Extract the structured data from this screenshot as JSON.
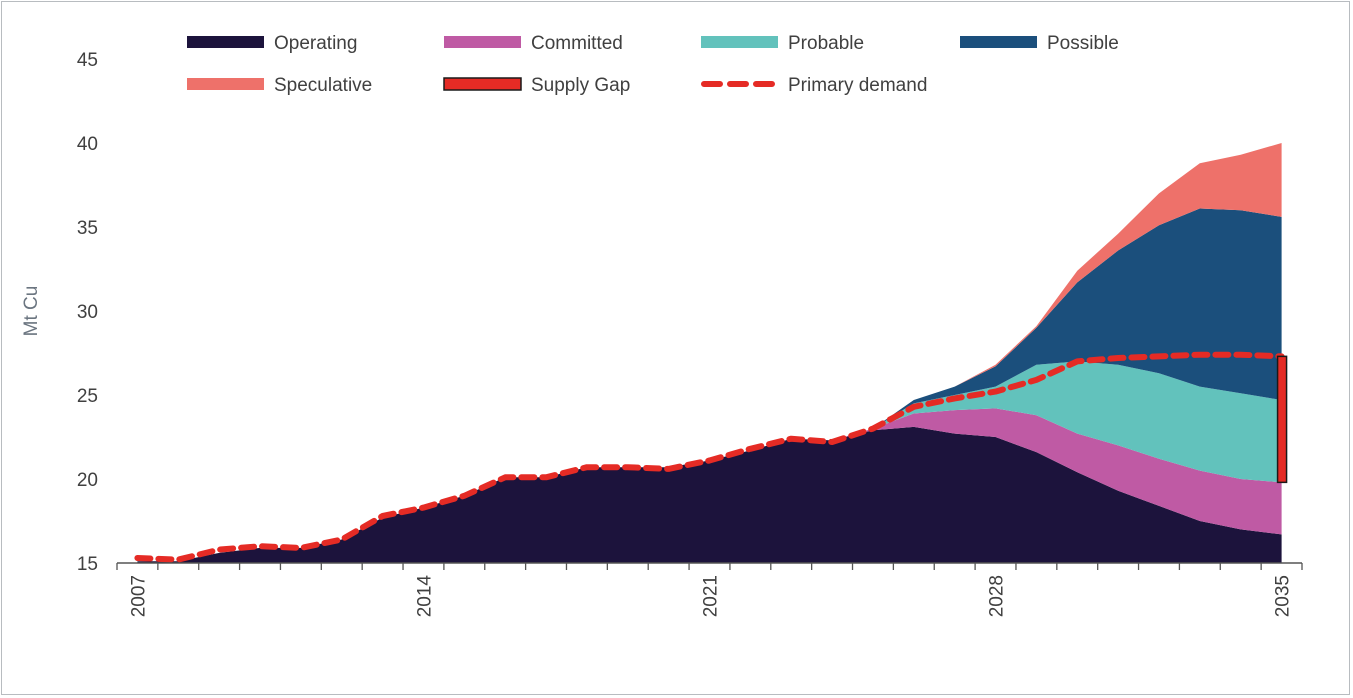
{
  "chart_data": {
    "type": "area",
    "stacked": true,
    "title": "",
    "xlabel": "",
    "ylabel": "Mt Cu",
    "ylim": [
      15,
      45
    ],
    "yticks": [
      "15",
      "20",
      "25",
      "30",
      "35",
      "40",
      "45"
    ],
    "xtick_labels": [
      "2007",
      "2014",
      "2021",
      "2028",
      "2035"
    ],
    "x": [
      2007,
      2008,
      2009,
      2010,
      2011,
      2012,
      2013,
      2014,
      2015,
      2016,
      2017,
      2018,
      2019,
      2020,
      2021,
      2022,
      2023,
      2024,
      2025,
      2026,
      2027,
      2028,
      2029,
      2030,
      2031,
      2032,
      2033,
      2034,
      2035
    ],
    "grid": false,
    "legend_position": "top",
    "series": [
      {
        "name": "Operating",
        "color": "#1c133c",
        "values": [
          15.1,
          15.1,
          15.6,
          15.9,
          15.9,
          16.4,
          17.7,
          18.3,
          19.0,
          20.1,
          20.1,
          20.7,
          20.7,
          20.7,
          21.1,
          21.7,
          22.4,
          22.3,
          22.9,
          23.1,
          22.7,
          22.5,
          21.6,
          20.4,
          19.3,
          18.4,
          17.5,
          17.0,
          16.7
        ]
      },
      {
        "name": "Committed",
        "color": "#bf5aa4",
        "values": [
          0,
          0,
          0,
          0,
          0,
          0,
          0,
          0,
          0,
          0,
          0,
          0,
          0,
          0,
          0,
          0,
          0,
          0,
          0.1,
          0.8,
          1.4,
          1.7,
          2.2,
          2.3,
          2.7,
          2.8,
          3.0,
          3.0,
          3.1
        ]
      },
      {
        "name": "Probable",
        "color": "#62c2bc",
        "values": [
          0,
          0,
          0,
          0,
          0,
          0,
          0,
          0,
          0,
          0,
          0,
          0,
          0,
          0,
          0,
          0,
          0,
          0,
          0,
          0.6,
          0.9,
          1.3,
          3.0,
          4.3,
          4.8,
          5.1,
          5.0,
          5.1,
          4.9
        ]
      },
      {
        "name": "Possible",
        "color": "#1b4f7c",
        "values": [
          0,
          0,
          0,
          0,
          0,
          0,
          0,
          0,
          0,
          0,
          0,
          0,
          0,
          0,
          0,
          0,
          0,
          0,
          0,
          0.2,
          0.5,
          1.2,
          2.2,
          4.7,
          6.8,
          8.8,
          10.6,
          10.9,
          10.9
        ]
      },
      {
        "name": "Speculative",
        "color": "#ee716a",
        "values": [
          0,
          0,
          0,
          0,
          0,
          0,
          0,
          0,
          0,
          0,
          0,
          0,
          0,
          0,
          0,
          0,
          0,
          0,
          0,
          0,
          0,
          0.1,
          0.1,
          0.7,
          1.0,
          1.9,
          2.7,
          3.3,
          4.4
        ]
      }
    ],
    "lines": [
      {
        "name": "Primary demand",
        "color": "#e52b25",
        "style": "dashed",
        "values": [
          15.3,
          15.2,
          15.8,
          16.0,
          15.9,
          16.4,
          17.8,
          18.3,
          19.0,
          20.1,
          20.1,
          20.7,
          20.7,
          20.6,
          21.1,
          21.8,
          22.4,
          22.2,
          23.0,
          24.3,
          24.8,
          25.2,
          25.9,
          27.0,
          27.2,
          27.3,
          27.4,
          27.4,
          27.3
        ]
      }
    ],
    "annotations": [
      {
        "name": "Supply Gap",
        "x": 2035,
        "from": 19.8,
        "to": 27.3,
        "color": "#e52b25",
        "border": "#1a1a1a"
      }
    ],
    "legend": [
      {
        "label": "Operating",
        "kind": "area",
        "color": "#1c133c"
      },
      {
        "label": "Committed",
        "kind": "area",
        "color": "#bf5aa4"
      },
      {
        "label": "Probable",
        "kind": "area",
        "color": "#62c2bc"
      },
      {
        "label": "Possible",
        "kind": "area",
        "color": "#1b4f7c"
      },
      {
        "label": "Speculative",
        "kind": "area",
        "color": "#ee716a"
      },
      {
        "label": "Supply Gap",
        "kind": "bar",
        "color": "#e52b25"
      },
      {
        "label": "Primary demand",
        "kind": "dashed",
        "color": "#e52b25"
      }
    ]
  }
}
